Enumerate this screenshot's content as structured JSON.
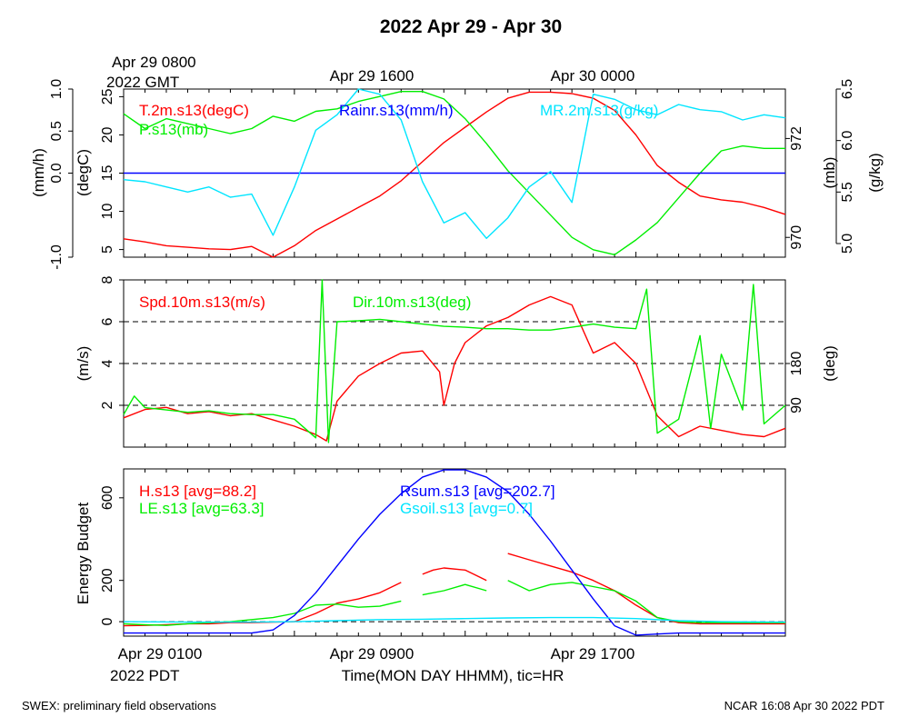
{
  "figure": {
    "title": "2022 Apr 29 - Apr 30",
    "top_time_labels": [
      "Apr 29 0800",
      "Apr 29 1600",
      "Apr 30 0000"
    ],
    "top_tz_label": "2022 GMT",
    "bottom_time_labels": [
      "Apr 29 0100",
      "Apr 29 0900",
      "Apr 29 1700"
    ],
    "bottom_tz_label": "2022 PDT",
    "xlabel": "Time(MON DAY HHMM), tic=HR",
    "footer_left": "SWEX: preliminary field observations",
    "footer_right": "NCAR 16:08 Apr 30 2022 PDT"
  },
  "colors": {
    "red": "#ff0000",
    "green": "#00ee00",
    "blue": "#0000ff",
    "cyan": "#00e5ff",
    "black": "#000000"
  },
  "chart_data": [
    {
      "type": "line",
      "x_unit": "hours since Apr 29 0100 PDT",
      "xlim": [
        0,
        31
      ],
      "axes": [
        {
          "label": "(mm/h)",
          "side": "left",
          "ticks": [
            "-1.0",
            "0.0",
            "0.5",
            "1.0"
          ],
          "range": [
            -1.0,
            1.0
          ]
        },
        {
          "label": "(degC)",
          "side": "left",
          "ticks": [
            "5",
            "10",
            "15",
            "20",
            "25"
          ],
          "range": [
            4,
            26
          ]
        },
        {
          "label": "(mb)",
          "side": "right",
          "ticks": [
            "970",
            "972"
          ],
          "range": [
            969.6,
            973.0
          ]
        },
        {
          "label": "(g/kg)",
          "side": "right",
          "ticks": [
            "5.0",
            "5.5",
            "6.0",
            "6.5"
          ],
          "range": [
            5.0,
            6.5
          ]
        }
      ],
      "reference_lines": [
        {
          "axis": "(mm/h)",
          "value": 0.0,
          "style": "dashed"
        }
      ],
      "series": [
        {
          "name": "T.2m.s13(degC)",
          "color": "red",
          "axis": "(degC)",
          "x": [
            0,
            1,
            2,
            3,
            4,
            5,
            6,
            7,
            8,
            9,
            10,
            11,
            12,
            13,
            14,
            15,
            16,
            17,
            18,
            19,
            20,
            21,
            22,
            23,
            24,
            25,
            26,
            27,
            28,
            29,
            30,
            31
          ],
          "y": [
            6.4,
            6.0,
            5.5,
            5.3,
            5.1,
            5.0,
            5.4,
            4.0,
            5.5,
            7.5,
            9.0,
            10.5,
            12.0,
            14.0,
            16.5,
            19.0,
            21.0,
            23.0,
            24.8,
            25.6,
            25.6,
            25.4,
            24.8,
            23.2,
            20.0,
            16.0,
            13.8,
            12.0,
            11.5,
            11.2,
            10.5,
            9.6
          ]
        },
        {
          "name": "P.s13(mb)",
          "color": "green",
          "axis": "(mb)",
          "x": [
            0,
            1,
            2,
            3,
            4,
            5,
            6,
            7,
            8,
            9,
            10,
            11,
            12,
            13,
            14,
            15,
            16,
            17,
            18,
            19,
            20,
            21,
            22,
            23,
            24,
            25,
            26,
            27,
            28,
            29,
            30,
            31
          ],
          "y": [
            972.5,
            972.2,
            972.4,
            972.3,
            972.2,
            972.1,
            972.2,
            972.45,
            972.35,
            972.55,
            972.6,
            972.75,
            972.85,
            972.95,
            972.95,
            972.8,
            972.4,
            971.9,
            971.35,
            970.9,
            970.45,
            970.0,
            969.75,
            969.65,
            969.95,
            970.3,
            970.8,
            971.3,
            971.75,
            971.85,
            971.8,
            971.8
          ]
        },
        {
          "name": "Rainr.s13(mm/h)",
          "color": "blue",
          "axis": "(mm/h)",
          "x": [
            0,
            31
          ],
          "y": [
            0.0,
            0.0
          ]
        },
        {
          "name": "MR.2m.s13(g/kg)",
          "color": "cyan",
          "axis": "(g/kg)",
          "x": [
            0,
            1,
            2,
            3,
            4,
            5,
            6,
            7,
            8,
            9,
            10,
            11,
            12,
            13,
            14,
            15,
            16,
            17,
            18,
            19,
            20,
            21,
            22,
            23,
            24,
            25,
            26,
            27,
            28,
            29,
            30,
            31
          ],
          "y": [
            5.62,
            5.6,
            5.55,
            5.5,
            5.55,
            5.45,
            5.48,
            5.08,
            5.55,
            6.1,
            6.25,
            6.5,
            6.45,
            6.2,
            5.6,
            5.2,
            5.3,
            5.05,
            5.25,
            5.55,
            5.7,
            5.4,
            6.45,
            6.4,
            6.3,
            6.25,
            6.35,
            6.3,
            6.28,
            6.2,
            6.25,
            6.22
          ]
        }
      ]
    },
    {
      "type": "line",
      "x_unit": "hours since Apr 29 0100 PDT",
      "xlim": [
        0,
        31
      ],
      "axes": [
        {
          "label": "(m/s)",
          "side": "left",
          "ticks": [
            "2",
            "4",
            "6",
            "8"
          ],
          "range": [
            0,
            8
          ]
        },
        {
          "label": "(deg)",
          "side": "right",
          "ticks": [
            "90",
            "180"
          ],
          "range": [
            0,
            360
          ]
        }
      ],
      "reference_lines": [
        {
          "axis": "(m/s)",
          "value": 2,
          "style": "dashed"
        },
        {
          "axis": "(m/s)",
          "value": 4,
          "style": "dashed"
        },
        {
          "axis": "(m/s)",
          "value": 6,
          "style": "dashed"
        }
      ],
      "series": [
        {
          "name": "Spd.10m.s13(m/s)",
          "color": "red",
          "axis": "(m/s)",
          "x": [
            0,
            1,
            2,
            3,
            4,
            5,
            6,
            7,
            8,
            9,
            9.5,
            10,
            11,
            12,
            13,
            14,
            14.8,
            15,
            15.5,
            16,
            17,
            18,
            19,
            20,
            21,
            22,
            23,
            24,
            25,
            26,
            27,
            28,
            29,
            30,
            31
          ],
          "y": [
            1.4,
            1.8,
            1.9,
            1.6,
            1.7,
            1.5,
            1.6,
            1.3,
            1.0,
            0.6,
            0.3,
            2.2,
            3.4,
            4.0,
            4.5,
            4.6,
            3.6,
            2.0,
            4.0,
            5.0,
            5.8,
            6.2,
            6.8,
            7.2,
            6.8,
            4.5,
            5.0,
            4.0,
            1.5,
            0.5,
            1.0,
            0.8,
            0.6,
            0.5,
            0.9
          ]
        },
        {
          "name": "Dir.10m.s13(deg)",
          "color": "green",
          "axis": "(deg)",
          "x": [
            0,
            0.5,
            1,
            2,
            3,
            4,
            5,
            6,
            7,
            8,
            9,
            9.3,
            9.6,
            10,
            11,
            12,
            13,
            14,
            15,
            16,
            17,
            18,
            19,
            20,
            21,
            22,
            23,
            24,
            24.5,
            25,
            26,
            27,
            27.5,
            28,
            29,
            29.5,
            30,
            31
          ],
          "y": [
            70,
            110,
            85,
            80,
            75,
            78,
            72,
            70,
            70,
            60,
            20,
            360,
            10,
            270,
            272,
            275,
            270,
            265,
            260,
            258,
            255,
            255,
            252,
            252,
            258,
            265,
            258,
            255,
            340,
            30,
            60,
            240,
            40,
            200,
            80,
            350,
            50,
            90
          ]
        }
      ]
    },
    {
      "type": "line",
      "x_unit": "hours since Apr 29 0100 PDT",
      "xlim": [
        0,
        31
      ],
      "ylabel": "Energy Budget",
      "yticks": [
        "0",
        "200",
        "600"
      ],
      "ylim": [
        -70,
        740
      ],
      "reference_lines": [
        {
          "value": 0,
          "style": "dashed"
        }
      ],
      "series": [
        {
          "name": "H.s13 [avg=88.2]",
          "color": "red",
          "segments": [
            {
              "x": [
                0,
                1,
                2,
                3,
                4,
                5,
                6,
                7,
                8,
                9,
                10,
                11,
                12,
                13
              ],
              "y": [
                -20,
                -18,
                -15,
                -10,
                -10,
                -5,
                -5,
                -2,
                0,
                40,
                90,
                110,
                140,
                190
              ]
            },
            {
              "x": [
                14,
                14.5,
                15,
                16,
                17
              ],
              "y": [
                230,
                250,
                260,
                250,
                200
              ]
            },
            {
              "x": [
                18,
                19,
                20,
                21,
                22,
                23,
                24,
                25,
                26,
                27,
                28,
                29,
                30,
                31
              ],
              "y": [
                330,
                300,
                270,
                240,
                200,
                150,
                80,
                20,
                -5,
                -10,
                -10,
                -10,
                -10,
                -10
              ]
            }
          ]
        },
        {
          "name": "LE.s13 [avg=63.3]",
          "color": "green",
          "segments": [
            {
              "x": [
                0,
                1,
                2,
                3,
                4,
                5,
                6,
                7,
                8,
                9,
                10,
                11,
                12,
                13
              ],
              "y": [
                -10,
                -15,
                -18,
                -10,
                -5,
                0,
                10,
                20,
                40,
                80,
                85,
                70,
                75,
                100
              ]
            },
            {
              "x": [
                14,
                15,
                16,
                17
              ],
              "y": [
                130,
                150,
                180,
                150
              ]
            },
            {
              "x": [
                18,
                19,
                20,
                21,
                22,
                23,
                24,
                25,
                26,
                27,
                28,
                29,
                30,
                31
              ],
              "y": [
                200,
                150,
                180,
                190,
                170,
                150,
                100,
                20,
                0,
                -5,
                -5,
                -5,
                -5,
                -5
              ]
            }
          ]
        },
        {
          "name": "Rsum.s13 [avg=202.7]",
          "color": "blue",
          "x": [
            0,
            1,
            2,
            3,
            4,
            5,
            6,
            7,
            8,
            9,
            10,
            11,
            12,
            13,
            14,
            15,
            16,
            17,
            18,
            19,
            20,
            21,
            22,
            23,
            24,
            25,
            26,
            27,
            28,
            29,
            30,
            31
          ],
          "y": [
            -55,
            -55,
            -55,
            -55,
            -55,
            -55,
            -55,
            -40,
            30,
            140,
            270,
            400,
            520,
            620,
            700,
            735,
            735,
            700,
            630,
            520,
            390,
            250,
            110,
            -20,
            -65,
            -60,
            -55,
            -55,
            -55,
            -55,
            -55,
            -55
          ]
        },
        {
          "name": "Gsoil.s13 [avg=0.7]",
          "color": "cyan",
          "x": [
            0,
            3,
            6,
            8,
            10,
            12,
            14,
            16,
            18,
            20,
            22,
            24,
            26,
            28,
            31
          ],
          "y": [
            0,
            -2,
            -2,
            0,
            5,
            10,
            12,
            15,
            18,
            20,
            20,
            15,
            5,
            0,
            -2
          ]
        }
      ]
    }
  ]
}
